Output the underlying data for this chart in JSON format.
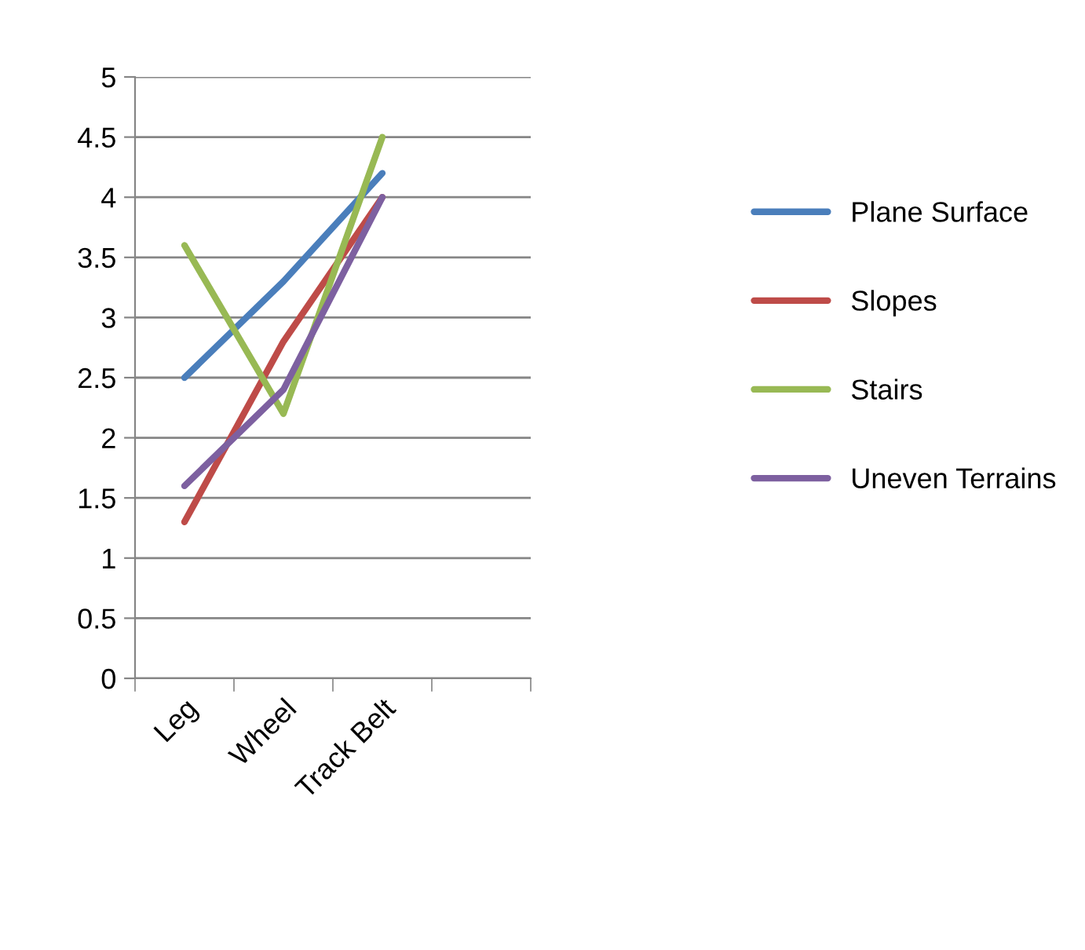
{
  "chart_data": {
    "type": "line",
    "categories": [
      "Leg",
      "Wheel",
      "Track Belt",
      null
    ],
    "series": [
      {
        "name": "Plane Surface",
        "color": "#4a7ebb",
        "values": [
          2.5,
          3.3,
          4.2,
          null
        ]
      },
      {
        "name": "Slopes",
        "color": "#be4b48",
        "values": [
          1.3,
          2.8,
          4.0,
          null
        ]
      },
      {
        "name": "Stairs",
        "color": "#98b954",
        "values": [
          3.6,
          2.2,
          4.5,
          null
        ]
      },
      {
        "name": "Uneven Terrains",
        "color": "#7d60a0",
        "values": [
          1.6,
          2.4,
          4.0,
          null
        ]
      }
    ],
    "ylim": [
      0,
      5
    ],
    "yticks": [
      0,
      0.5,
      1,
      1.5,
      2,
      2.5,
      3,
      3.5,
      4,
      4.5,
      5
    ],
    "grid": "y",
    "legend": "right",
    "marker": "none",
    "line_style": "solid"
  }
}
